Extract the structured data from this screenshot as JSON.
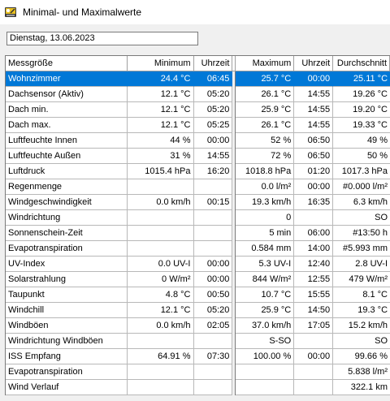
{
  "window": {
    "title": "Minimal- und Maximalwerte",
    "icon": "weather-station-icon"
  },
  "date_field": {
    "value": "Dienstag, 13.06.2023"
  },
  "table": {
    "headers": [
      "Messgröße",
      "Minimum",
      "Uhrzeit",
      "Maximum",
      "Uhrzeit",
      "Durchschnitt"
    ],
    "selected_row": 0,
    "rows": [
      [
        "Wohnzimmer",
        "24.4 °C",
        "06:45",
        "25.7 °C",
        "00:00",
        "25.11 °C"
      ],
      [
        "Dachsensor (Aktiv)",
        "12.1 °C",
        "05:20",
        "26.1 °C",
        "14:55",
        "19.26 °C"
      ],
      [
        "Dach min.",
        "12.1 °C",
        "05:20",
        "25.9 °C",
        "14:55",
        "19.20 °C"
      ],
      [
        "Dach max.",
        "12.1 °C",
        "05:25",
        "26.1 °C",
        "14:55",
        "19.33 °C"
      ],
      [
        "Luftfeuchte Innen",
        "44 %",
        "00:00",
        "52 %",
        "06:50",
        "49 %"
      ],
      [
        "Luftfeuchte Außen",
        "31 %",
        "14:55",
        "72 %",
        "06:50",
        "50 %"
      ],
      [
        "Luftdruck",
        "1015.4 hPa",
        "16:20",
        "1018.8 hPa",
        "01:20",
        "1017.3 hPa"
      ],
      [
        "Regenmenge",
        "",
        "",
        "0.0 l/m²",
        "00:00",
        "#0.000 l/m²"
      ],
      [
        "Windgeschwindigkeit",
        "0.0 km/h",
        "00:15",
        "19.3 km/h",
        "16:35",
        "6.3 km/h"
      ],
      [
        "Windrichtung",
        "",
        "",
        "0",
        "",
        "SO"
      ],
      [
        "Sonnenschein-Zeit",
        "",
        "",
        "5 min",
        "06:00",
        "#13:50 h"
      ],
      [
        "Evapotranspiration",
        "",
        "",
        "0.584 mm",
        "14:00",
        "#5.993 mm"
      ],
      [
        "UV-Index",
        "0.0 UV-I",
        "00:00",
        "5.3 UV-I",
        "12:40",
        "2.8 UV-I"
      ],
      [
        "Solarstrahlung",
        "0 W/m²",
        "00:00",
        "844 W/m²",
        "12:55",
        "479 W/m²"
      ],
      [
        "Taupunkt",
        "4.8 °C",
        "00:50",
        "10.7 °C",
        "15:55",
        "8.1 °C"
      ],
      [
        "Windchill",
        "12.1 °C",
        "05:20",
        "25.9 °C",
        "14:50",
        "19.3 °C"
      ],
      [
        "Windböen",
        "0.0 km/h",
        "02:05",
        "37.0 km/h",
        "17:05",
        "15.2 km/h"
      ],
      [
        "Windrichtung Windböen",
        "",
        "",
        "S-SO",
        "",
        "SO"
      ],
      [
        "ISS Empfang",
        "64.91 %",
        "07:30",
        "100.00 %",
        "00:00",
        "99.66 %"
      ],
      [
        "Evapotranspiration",
        "",
        "",
        "",
        "",
        "5.838 l/m²"
      ],
      [
        "Wind Verlauf",
        "",
        "",
        "",
        "",
        "322.1 km"
      ]
    ]
  }
}
